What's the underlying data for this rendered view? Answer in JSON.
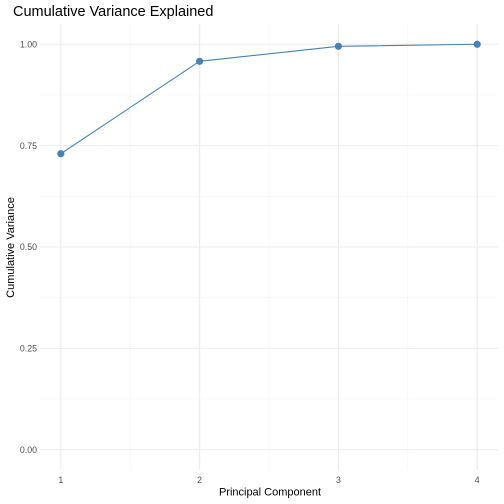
{
  "chart_data": {
    "type": "line",
    "title": "Cumulative Variance Explained",
    "xlabel": "Principal Component",
    "ylabel": "Cumulative Variance",
    "x": [
      1,
      2,
      3,
      4
    ],
    "xticks": [
      "1",
      "2",
      "3",
      "4"
    ],
    "yticks": [
      "0.00",
      "0.25",
      "0.50",
      "0.75",
      "1.00"
    ],
    "xlim": [
      0.85,
      4.15
    ],
    "ylim": [
      -0.05,
      1.05
    ],
    "grid": true,
    "legend": "none",
    "series": [
      {
        "values": [
          0.73,
          0.958,
          0.995,
          1.0
        ],
        "color": "#4682b4"
      }
    ]
  }
}
